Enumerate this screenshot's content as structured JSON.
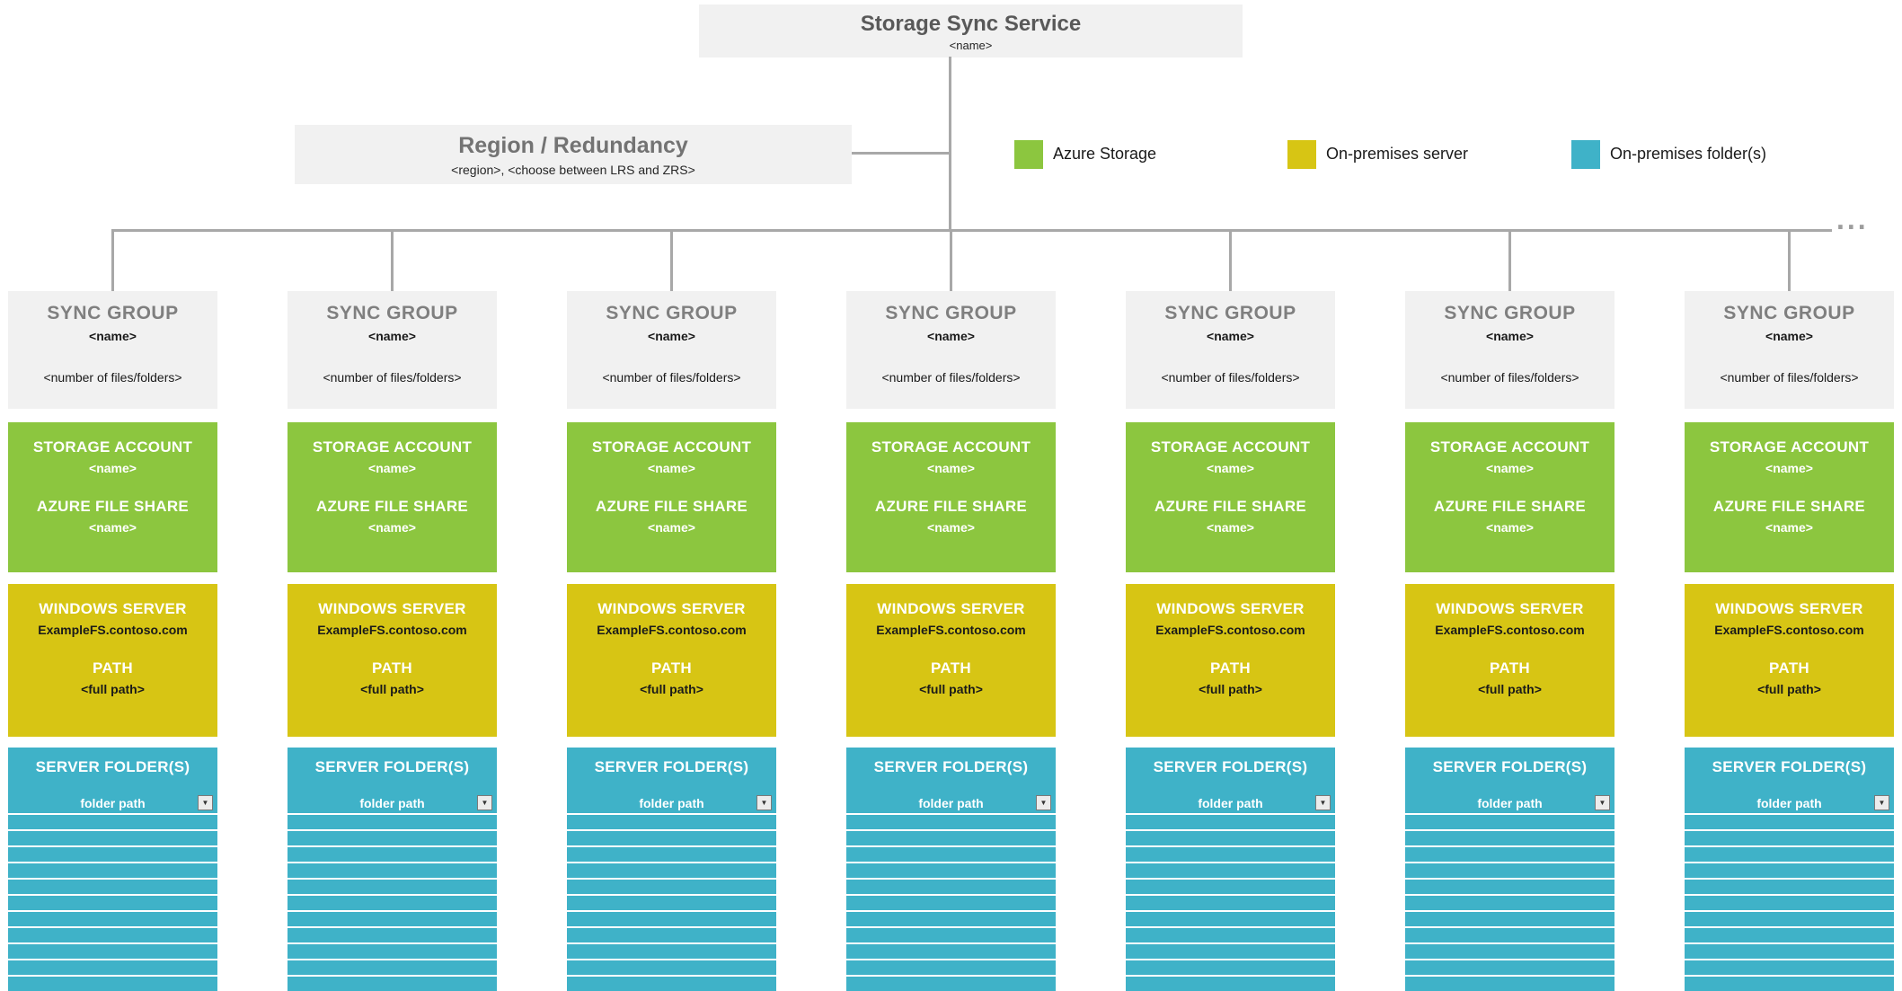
{
  "root": {
    "title": "Storage Sync Service",
    "subtitle": "<name>"
  },
  "region": {
    "title": "Region / Redundancy",
    "subtitle": "<region>, <choose between LRS and ZRS>"
  },
  "legend": [
    {
      "label": "Azure Storage",
      "color": "#8cc63f"
    },
    {
      "label": "On-premises server",
      "color": "#d7c514"
    },
    {
      "label": "On-premises folder(s)",
      "color": "#3fb2c8"
    }
  ],
  "more": "...",
  "columns": 7,
  "sync_group": {
    "title": "SYNC GROUP",
    "name": "<name>",
    "count": "<number of files/folders>",
    "storage_account_label": "STORAGE ACCOUNT",
    "storage_account_name": "<name>",
    "file_share_label": "AZURE FILE SHARE",
    "file_share_name": "<name>",
    "server_label": "WINDOWS SERVER",
    "server_name": "ExampleFS.contoso.com",
    "path_label": "PATH",
    "path_value": "<full path>",
    "folders_label": "SERVER FOLDER(S)",
    "folder_path": "folder path",
    "folder_rows": 10
  },
  "colors": {
    "azure_storage": "#8cc63f",
    "on_premises_server": "#d7c514",
    "on_premises_folders": "#3fb2c8",
    "connector": "#a8a8a8",
    "box_gray": "#f1f1f1"
  }
}
